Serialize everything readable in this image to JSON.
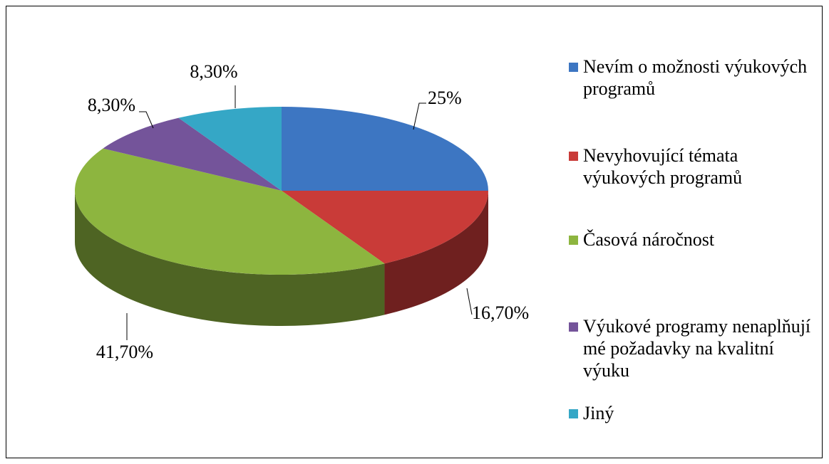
{
  "chart_data": {
    "type": "pie",
    "categories": [
      "Nevím o možnosti výukových programů",
      "Nevyhovující témata výukových programů",
      "Časová náročnost",
      "Výukové programy nenaplňují mé požadavky na kvalitní výuku",
      "Jiný"
    ],
    "values": [
      25,
      16.7,
      41.7,
      8.3,
      8.3
    ],
    "value_labels": [
      "25%",
      "16,70%",
      "41,70%",
      "8,30%",
      "8,30%"
    ],
    "colors": [
      "#3d76c2",
      "#c93b38",
      "#8db53f",
      "#74549a",
      "#35a7c6"
    ],
    "legend": "right"
  }
}
